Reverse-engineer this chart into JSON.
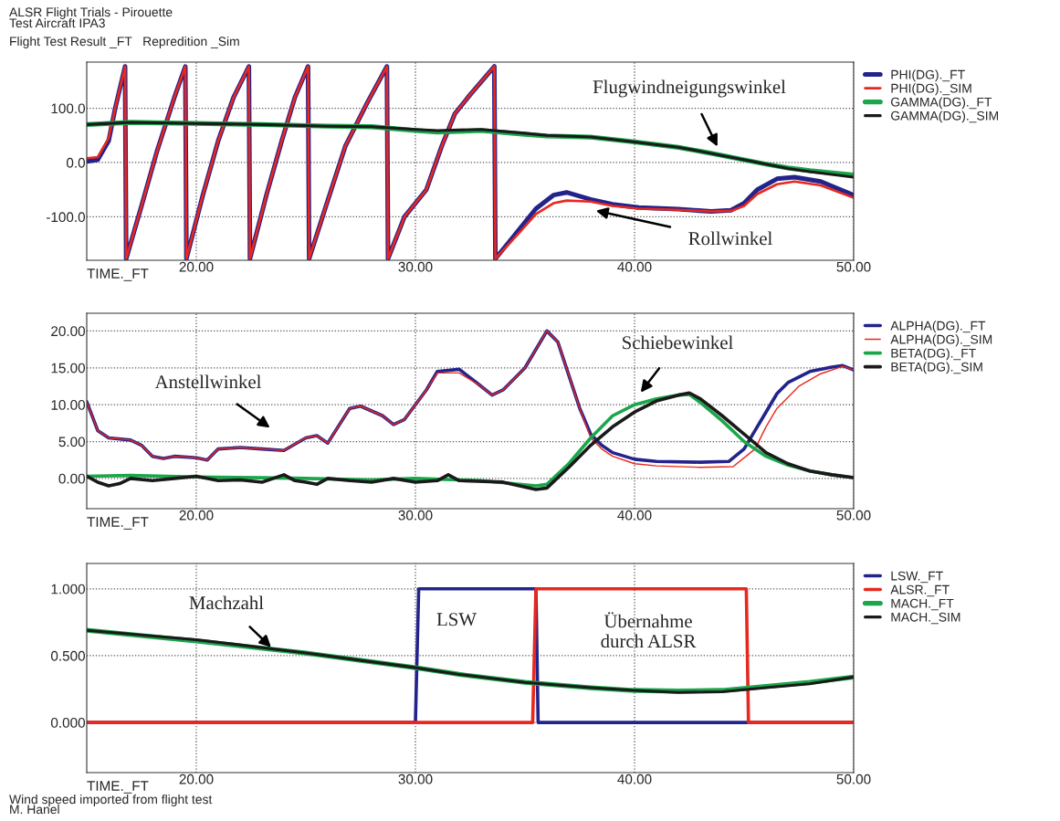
{
  "chart_data": [
    {
      "type": "line",
      "title": "ALSR Flight Trials - Pirouette",
      "subtitle": "Test Aircraft IPA3",
      "xlabel": "TIME._FT",
      "xlim": [
        15,
        50
      ],
      "xticks": [
        {
          "value": 20,
          "label": "20.00"
        },
        {
          "value": 30,
          "label": "30.00"
        },
        {
          "value": 40,
          "label": "40.00"
        },
        {
          "value": 50,
          "label": "50.00"
        }
      ],
      "ylim": [
        -180,
        185
      ],
      "yticks": [
        {
          "value": -100,
          "label": "-100.0"
        },
        {
          "value": 0,
          "label": "0.0"
        },
        {
          "value": 100,
          "label": "100.0"
        }
      ],
      "grid": true,
      "legend": "right",
      "annotations": [
        "Flight Test Result _FT   Repredition _Sim",
        "Flugwindneigungswinkel",
        "Rollwinkel"
      ],
      "series": [
        {
          "name": "PHI(DG)._FT",
          "color": "#23238c",
          "x": [
            15,
            15.5,
            16,
            16.3,
            16.75,
            16.8,
            17.5,
            18.2,
            19,
            19.5,
            19.55,
            20.3,
            21,
            21.7,
            22.4,
            22.45,
            23.2,
            23.9,
            24.5,
            25.1,
            25.15,
            26,
            26.8,
            27.8,
            28.7,
            28.75,
            29.5,
            30.5,
            31.2,
            31.8,
            32.5,
            33.6,
            33.65,
            34.5,
            35.5,
            36.3,
            36.9,
            38,
            39,
            40.2,
            42,
            43.5,
            44.4,
            45,
            45.6,
            46.5,
            47.3,
            48.5,
            50
          ],
          "values": [
            2,
            5,
            40,
            100,
            177,
            -177,
            -80,
            20,
            120,
            177,
            -177,
            -60,
            40,
            120,
            177,
            -177,
            -60,
            40,
            120,
            177,
            -177,
            -70,
            30,
            110,
            177,
            -177,
            -100,
            -50,
            30,
            90,
            125,
            177,
            -177,
            -135,
            -85,
            -60,
            -55,
            -68,
            -77,
            -83,
            -86,
            -90,
            -88,
            -75,
            -50,
            -30,
            -27,
            -35,
            -60
          ]
        },
        {
          "name": "PHI(DG)._SIM",
          "color": "#e8281e",
          "x": [
            15,
            15.5,
            16,
            16.3,
            16.75,
            16.8,
            17.5,
            18.2,
            19,
            19.5,
            19.55,
            20.3,
            21,
            21.7,
            22.4,
            22.45,
            23.2,
            23.9,
            24.5,
            25.1,
            25.15,
            26,
            26.8,
            27.8,
            28.7,
            28.75,
            29.5,
            30.5,
            31.2,
            31.8,
            32.5,
            33.6,
            33.65,
            34.5,
            35.5,
            36.3,
            36.9,
            38,
            39,
            40.2,
            42,
            43.5,
            44.4,
            45,
            45.6,
            46.5,
            47.3,
            48.5,
            50
          ],
          "values": [
            8,
            10,
            45,
            100,
            177,
            -177,
            -80,
            20,
            120,
            177,
            -177,
            -60,
            40,
            120,
            177,
            -177,
            -60,
            40,
            120,
            177,
            -177,
            -70,
            30,
            110,
            177,
            -177,
            -100,
            -50,
            30,
            90,
            125,
            177,
            -177,
            -140,
            -95,
            -75,
            -70,
            -72,
            -80,
            -85,
            -87,
            -90,
            -89,
            -80,
            -58,
            -40,
            -35,
            -42,
            -65
          ]
        },
        {
          "name": "GAMMA(DG)._FT",
          "color": "#1aa64a",
          "x": [
            15,
            17,
            20,
            23,
            26,
            28,
            30,
            31,
            33,
            35,
            36,
            38,
            40,
            42,
            43.5,
            45,
            46,
            47,
            48,
            50
          ],
          "values": [
            70,
            74,
            72,
            70,
            67,
            66,
            59,
            56,
            59,
            52,
            49,
            47,
            38,
            28,
            17,
            5,
            -3,
            -10,
            -15,
            -23
          ]
        },
        {
          "name": "GAMMA(DG)._SIM",
          "color": "#1a1a1a",
          "x": [
            15,
            17,
            20,
            23,
            26,
            28,
            30,
            31,
            33,
            35,
            36,
            38,
            40,
            42,
            43.5,
            45,
            46,
            47,
            48,
            50
          ],
          "values": [
            70,
            74,
            72,
            70,
            67,
            66,
            61,
            59,
            61,
            54,
            50,
            47,
            38,
            28,
            17,
            5,
            -3,
            -11,
            -17,
            -27
          ]
        }
      ]
    },
    {
      "type": "line",
      "xlabel": "TIME._FT",
      "xlim": [
        15,
        50
      ],
      "xticks": [
        {
          "value": 20,
          "label": "20.00"
        },
        {
          "value": 30,
          "label": "30.00"
        },
        {
          "value": 40,
          "label": "40.00"
        },
        {
          "value": 50,
          "label": "50.00"
        }
      ],
      "ylim": [
        -4.1,
        22.4
      ],
      "yticks": [
        {
          "value": 0,
          "label": "0.00"
        },
        {
          "value": 5,
          "label": "5.00"
        },
        {
          "value": 10,
          "label": "10.00"
        },
        {
          "value": 15,
          "label": "15.00"
        },
        {
          "value": 20,
          "label": "20.00"
        }
      ],
      "grid": true,
      "legend": "right",
      "annotations": [
        "Anstellwinkel",
        "Schiebewinkel"
      ],
      "series": [
        {
          "name": "ALPHA(DG)._FT",
          "color": "#23238c",
          "x": [
            15,
            15.5,
            16,
            17,
            17.5,
            18,
            18.5,
            19,
            20,
            20.5,
            21,
            22,
            23,
            24,
            25,
            25.5,
            26,
            27,
            27.5,
            28.5,
            29,
            29.5,
            30.5,
            31,
            32,
            33,
            33.5,
            34,
            35,
            35.7,
            36,
            36.5,
            37,
            37.5,
            38,
            38.5,
            39,
            40,
            41,
            43,
            44.3,
            45,
            45.5,
            46,
            46.5,
            47,
            48,
            49,
            49.5,
            50
          ],
          "values": [
            10.4,
            6.5,
            5.5,
            5.2,
            4.5,
            3,
            2.7,
            3,
            2.8,
            2.5,
            4,
            4.2,
            4,
            3.8,
            5.5,
            5.8,
            4.8,
            9.5,
            9.8,
            8.5,
            7.3,
            8,
            12,
            14.5,
            14.8,
            12.5,
            11.3,
            12,
            15,
            18.5,
            20,
            18.5,
            14,
            9.5,
            6,
            4.5,
            3.5,
            2.6,
            2.3,
            2.2,
            2.3,
            4,
            6.5,
            9,
            11.5,
            13,
            14.5,
            15.1,
            15.3,
            14.7
          ]
        },
        {
          "name": "ALPHA(DG)._SIM",
          "color": "#e8281e",
          "x": [
            15,
            15.5,
            16,
            17,
            17.5,
            18,
            18.5,
            19,
            20,
            20.5,
            21,
            22,
            23,
            24,
            25,
            25.5,
            26,
            27,
            27.5,
            28.5,
            29,
            29.5,
            30.5,
            31,
            32,
            33,
            33.5,
            34,
            35,
            35.7,
            36,
            36.5,
            37,
            37.5,
            38,
            38.5,
            39,
            40,
            41,
            43,
            44.5,
            45.5,
            46,
            46.5,
            47.5,
            48.5,
            49.5,
            50
          ],
          "values": [
            10.4,
            6.5,
            5.5,
            5.2,
            4.5,
            3,
            2.7,
            3,
            2.8,
            2.5,
            4,
            4.2,
            4,
            3.8,
            5.5,
            5.8,
            4.8,
            9.5,
            9.8,
            8.5,
            7.3,
            8,
            12,
            14.3,
            14.3,
            12.5,
            11.3,
            12,
            15,
            18.5,
            20,
            18.5,
            14,
            9.5,
            5.5,
            4,
            3,
            2,
            1.7,
            1.5,
            1.6,
            4,
            7,
            9.5,
            12.5,
            14.2,
            15.2,
            14.7
          ]
        },
        {
          "name": "BETA(DG)._FT",
          "color": "#1aa64a",
          "x": [
            15,
            17,
            20,
            23,
            25,
            28,
            30,
            33,
            35.5,
            36,
            37,
            38,
            39,
            40,
            41,
            42,
            42.5,
            43,
            44,
            45,
            46,
            47,
            48,
            49,
            50
          ],
          "values": [
            0.3,
            0.4,
            0.2,
            0.1,
            0,
            -0.2,
            0,
            -0.3,
            -1,
            -0.8,
            2,
            5.5,
            8.5,
            10,
            10.8,
            11.3,
            11.4,
            10.3,
            7.8,
            5,
            3,
            1.8,
            1,
            0.5,
            0.1
          ]
        },
        {
          "name": "BETA(DG)._SIM",
          "color": "#1a1a1a",
          "x": [
            15,
            15.5,
            16,
            16.5,
            17,
            18,
            19,
            20,
            21,
            22,
            23,
            24,
            24.5,
            25,
            25.5,
            26,
            27,
            28,
            29,
            30,
            31,
            31.5,
            32,
            34,
            35.5,
            36,
            37,
            38,
            39,
            40,
            41,
            42,
            42.5,
            43,
            44,
            45,
            46,
            47,
            48,
            49,
            50
          ],
          "values": [
            0.3,
            -0.5,
            -1,
            -0.7,
            0,
            -0.3,
            0,
            0.3,
            -0.3,
            -0.2,
            -0.5,
            0.5,
            -0.3,
            -0.5,
            -0.8,
            0,
            -0.3,
            -0.5,
            0,
            -0.5,
            -0.3,
            0.5,
            -0.3,
            -0.5,
            -1.5,
            -1.3,
            1.5,
            4.5,
            7,
            9,
            10.5,
            11.3,
            11.6,
            10.8,
            8.5,
            6,
            3.5,
            2,
            1,
            0.5,
            0.1
          ]
        }
      ]
    },
    {
      "type": "line",
      "xlabel": "TIME._FT",
      "xlim": [
        15,
        50
      ],
      "xticks": [
        {
          "value": 20,
          "label": "20.00"
        },
        {
          "value": 30,
          "label": "30.00"
        },
        {
          "value": 40,
          "label": "40.00"
        },
        {
          "value": 50,
          "label": "50.00"
        }
      ],
      "ylim": [
        -0.375,
        1.19
      ],
      "yticks": [
        {
          "value": 0,
          "label": "0.000"
        },
        {
          "value": 0.5,
          "label": "0.500"
        },
        {
          "value": 1,
          "label": "1.000"
        }
      ],
      "grid": true,
      "legend": "right",
      "annotations": [
        {
          "text": "Machzahl",
          "x": 23.5,
          "y": 0.55
        },
        "LSW",
        "Übernahme\ndurch ALSR",
        "Wind speed imported from flight test",
        "M. Hanel"
      ],
      "series": [
        {
          "name": "LSW._FT",
          "color": "#23238c",
          "x": [
            15,
            30.0,
            30.15,
            35.5,
            35.6,
            50
          ],
          "values": [
            0,
            0,
            1,
            1,
            0,
            0
          ]
        },
        {
          "name": "ALSR._FT",
          "color": "#e8281e",
          "x": [
            15,
            35.35,
            35.5,
            45.1,
            45.2,
            50
          ],
          "values": [
            0,
            0,
            1,
            1,
            0,
            0
          ]
        },
        {
          "name": "MACH._FT",
          "color": "#1aa64a",
          "x": [
            15,
            20,
            25,
            30,
            32,
            35,
            38,
            40,
            42,
            44,
            46,
            48,
            50
          ],
          "values": [
            0.69,
            0.61,
            0.52,
            0.41,
            0.36,
            0.3,
            0.26,
            0.24,
            0.235,
            0.24,
            0.27,
            0.3,
            0.34
          ]
        },
        {
          "name": "MACH._SIM",
          "color": "#1a1a1a",
          "x": [
            15,
            20,
            25,
            30,
            32,
            35,
            38,
            40,
            42,
            44,
            46,
            48,
            50
          ],
          "values": [
            0.69,
            0.62,
            0.52,
            0.41,
            0.36,
            0.3,
            0.26,
            0.24,
            0.225,
            0.23,
            0.26,
            0.29,
            0.34
          ]
        }
      ]
    }
  ]
}
